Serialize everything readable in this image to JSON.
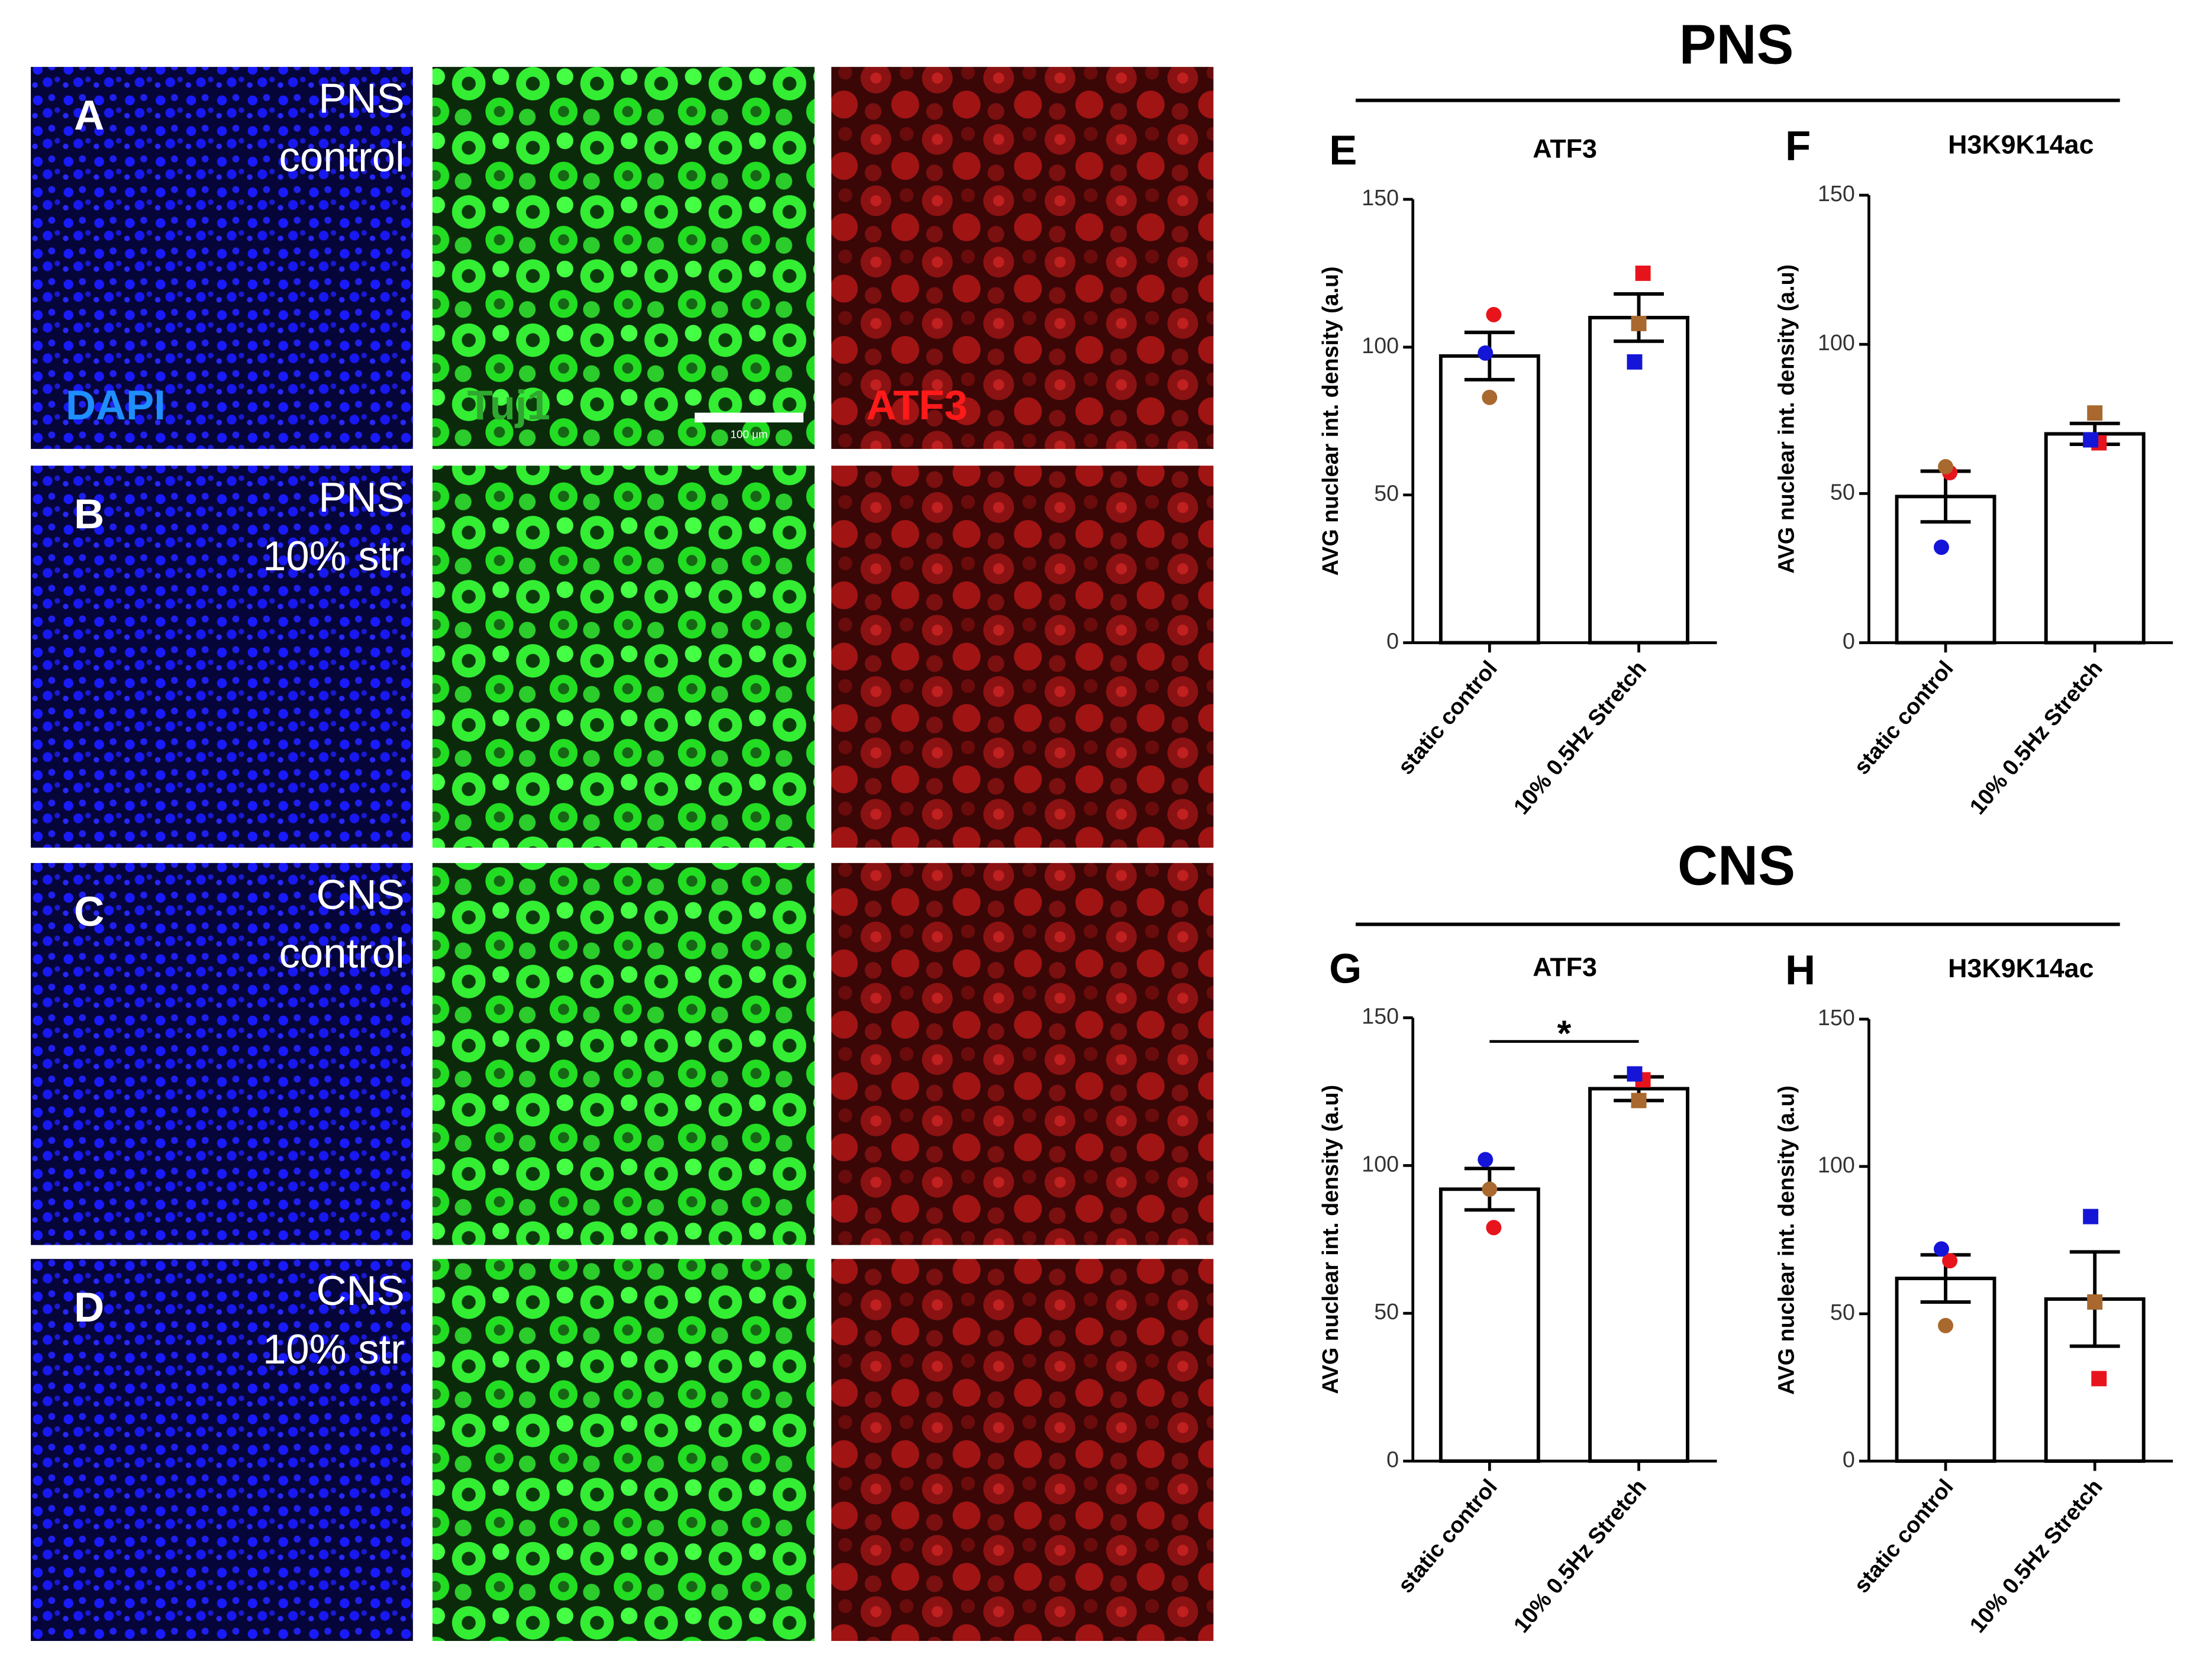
{
  "sections": [
    "PNS",
    "CNS"
  ],
  "micrographs": {
    "rows": [
      {
        "label": "A",
        "lines": [
          "PNS",
          "control"
        ]
      },
      {
        "label": "B",
        "lines": [
          "PNS",
          "10% str"
        ]
      },
      {
        "label": "C",
        "lines": [
          "CNS",
          "control"
        ]
      },
      {
        "label": "D",
        "lines": [
          "CNS",
          "10% str"
        ]
      }
    ],
    "channels": [
      "DAPI",
      "Tuj1",
      "ATF3"
    ],
    "scale_bar": "100 μm"
  },
  "chart_data": [
    {
      "type": "bar",
      "label": "E",
      "title": "ATF3",
      "ylabel": "AVG nuclear int. density (a.u)",
      "categories": [
        "static control",
        "10% 0.5Hz Stretch"
      ],
      "values": [
        97,
        110
      ],
      "errors": [
        8,
        8
      ],
      "color": "#ffffff",
      "ylim": [
        0,
        150
      ],
      "yticks": [
        0,
        50,
        100,
        150
      ],
      "markers": [
        "circle",
        "square"
      ],
      "points": [
        {
          "color": "#e8141c",
          "values": [
            111,
            125
          ]
        },
        {
          "color": "#1515d8",
          "values": [
            98,
            95
          ]
        },
        {
          "color": "#a8682e",
          "values": [
            83,
            108
          ]
        }
      ]
    },
    {
      "type": "bar",
      "label": "F",
      "title": "H3K9K14ac",
      "ylabel": "AVG nuclear int. density (a.u)",
      "categories": [
        "static control",
        "10% 0.5Hz Stretch"
      ],
      "values": [
        49,
        70
      ],
      "errors": [
        8.5,
        3.5
      ],
      "color": "#ffffff",
      "ylim": [
        0,
        150
      ],
      "yticks": [
        0,
        50,
        100,
        150
      ],
      "markers": [
        "circle",
        "square"
      ],
      "points": [
        {
          "color": "#e8141c",
          "values": [
            57,
            67
          ]
        },
        {
          "color": "#1515d8",
          "values": [
            32,
            68
          ]
        },
        {
          "color": "#a8682e",
          "values": [
            59,
            77
          ]
        }
      ]
    },
    {
      "type": "bar",
      "label": "G",
      "title": "ATF3",
      "ylabel": "AVG nuclear int. density (a.u)",
      "categories": [
        "static control",
        "10% 0.5Hz Stretch"
      ],
      "values": [
        92,
        126
      ],
      "errors": [
        7,
        4
      ],
      "color": "#ffffff",
      "ylim": [
        0,
        150
      ],
      "yticks": [
        0,
        50,
        100,
        150
      ],
      "markers": [
        "circle",
        "square"
      ],
      "annotation": "*",
      "points": [
        {
          "color": "#e8141c",
          "values": [
            79,
            129
          ]
        },
        {
          "color": "#1515d8",
          "values": [
            102,
            131
          ]
        },
        {
          "color": "#a8682e",
          "values": [
            92,
            122
          ]
        }
      ]
    },
    {
      "type": "bar",
      "label": "H",
      "title": "H3K9K14ac",
      "ylabel": "AVG nuclear int. density (a.u)",
      "categories": [
        "static control",
        "10% 0.5Hz Stretch"
      ],
      "values": [
        62,
        55
      ],
      "errors": [
        8,
        16
      ],
      "color": "#ffffff",
      "ylim": [
        0,
        150
      ],
      "yticks": [
        0,
        50,
        100,
        150
      ],
      "markers": [
        "circle",
        "square"
      ],
      "points": [
        {
          "color": "#e8141c",
          "values": [
            68,
            28
          ]
        },
        {
          "color": "#1515d8",
          "values": [
            72,
            83
          ]
        },
        {
          "color": "#a8682e",
          "values": [
            46,
            54
          ]
        }
      ]
    }
  ]
}
